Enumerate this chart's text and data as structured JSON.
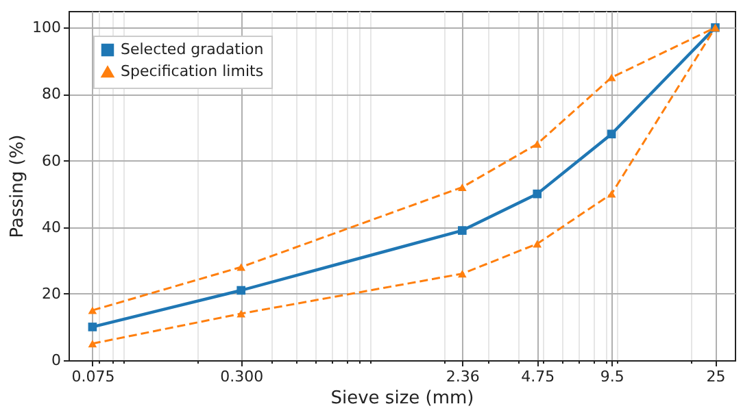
{
  "chart_data": {
    "type": "line",
    "xlabel": "Sieve size (mm)",
    "ylabel": "Passing (%)",
    "log": "x",
    "grid": true,
    "legend": "top left",
    "x": [
      0.075,
      0.3,
      2.36,
      4.75,
      9.5,
      25
    ],
    "xlim": [
      0.06,
      30
    ],
    "xticks": [
      0.075,
      {
        "value": 0.3,
        "label": "0.300"
      },
      2.36,
      4.75,
      9.5,
      25,
      {
        "value": 0.08,
        "label": null
      },
      {
        "value": 0.09,
        "label": null
      },
      {
        "value": 0.1,
        "label": null
      },
      {
        "value": 0.2,
        "label": null
      },
      {
        "value": 0.4,
        "label": null
      },
      {
        "value": 0.5,
        "label": null
      },
      {
        "value": 0.6,
        "label": null
      },
      {
        "value": 0.7,
        "label": null
      },
      {
        "value": 0.8,
        "label": null
      },
      {
        "value": 0.9,
        "label": null
      },
      {
        "value": 1,
        "label": null
      },
      {
        "value": 2,
        "label": null
      },
      {
        "value": 3,
        "label": null
      },
      {
        "value": 4,
        "label": null
      },
      {
        "value": 5,
        "label": null
      },
      {
        "value": 6,
        "label": null
      },
      {
        "value": 7,
        "label": null
      },
      {
        "value": 8,
        "label": null
      },
      {
        "value": 9,
        "label": null
      },
      {
        "value": 10,
        "label": null
      },
      {
        "value": 20,
        "label": null
      }
    ],
    "ylim": [
      0,
      105
    ],
    "yticks": [
      0,
      20,
      40,
      60,
      80,
      100
    ],
    "series": [
      {
        "name": "Selected gradation",
        "color": "#1f77b4",
        "marker": "square",
        "line_style": "solid",
        "values": [
          10,
          21,
          39,
          50,
          68,
          100
        ]
      },
      {
        "name": "Specification limits",
        "color": "#ff7f0e",
        "marker": "triangle",
        "line_style": "dashed",
        "values": [
          15,
          28,
          52,
          65,
          85,
          100
        ]
      },
      {
        "color": "#ff7f0e",
        "marker": "triangle",
        "line_style": "dashed",
        "values": [
          5,
          14,
          26,
          35,
          50,
          100
        ]
      }
    ]
  }
}
